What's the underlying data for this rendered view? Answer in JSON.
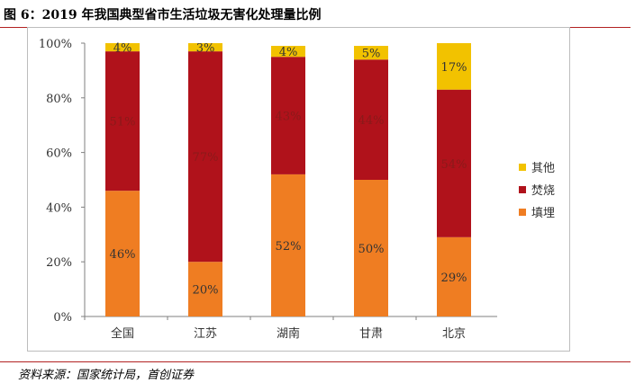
{
  "title": "图 6：2019 年我国典型省市生活垃圾无害化处理量比例",
  "source": "资料来源：国家统计局，首创证券",
  "chart_data": {
    "type": "bar",
    "stacked": true,
    "categories": [
      "全国",
      "江苏",
      "湖南",
      "甘肃",
      "北京"
    ],
    "series": [
      {
        "name": "填埋",
        "color": "#ef7d22",
        "values": [
          46,
          20,
          52,
          50,
          29
        ],
        "labels": [
          "46%",
          "20%",
          "52%",
          "50%",
          "29%"
        ]
      },
      {
        "name": "焚烧",
        "color": "#b0121b",
        "values": [
          51,
          77,
          43,
          44,
          54
        ],
        "labels": [
          "51%",
          "77%",
          "43%",
          "44%",
          "54%"
        ]
      },
      {
        "name": "其他",
        "color": "#f2c200",
        "values": [
          4,
          3,
          4,
          5,
          17
        ],
        "labels": [
          "4%",
          "3%",
          "4%",
          "5%",
          "17%"
        ]
      }
    ],
    "yticks": [
      "0%",
      "20%",
      "40%",
      "60%",
      "80%",
      "100%"
    ],
    "ylim": [
      0,
      100
    ],
    "legend_position": "right",
    "legend_order": [
      "其他",
      "焚烧",
      "填埋"
    ]
  }
}
